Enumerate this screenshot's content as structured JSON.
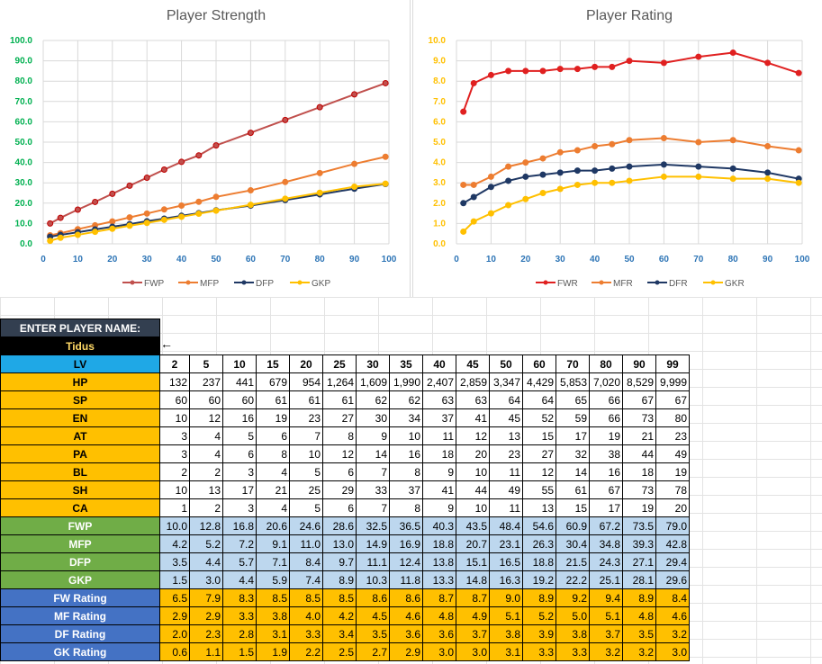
{
  "chart_data": [
    {
      "type": "line",
      "title": "Player Strength",
      "x": [
        2,
        5,
        10,
        15,
        20,
        25,
        30,
        35,
        40,
        45,
        50,
        60,
        70,
        80,
        90,
        99
      ],
      "xticks": [
        "0",
        "10",
        "20",
        "30",
        "40",
        "50",
        "60",
        "70",
        "80",
        "90",
        "100"
      ],
      "yticks": [
        "0.0",
        "10.0",
        "20.0",
        "30.0",
        "40.0",
        "50.0",
        "60.0",
        "70.0",
        "80.0",
        "90.0",
        "100.0"
      ],
      "xlim": [
        0,
        100
      ],
      "ylim": [
        0,
        100
      ],
      "grid": true,
      "legend_position": "bottom",
      "series": [
        {
          "name": "FWP",
          "color": "#c0504d",
          "values": [
            10.0,
            12.8,
            16.8,
            20.6,
            24.6,
            28.6,
            32.5,
            36.5,
            40.3,
            43.5,
            48.4,
            54.6,
            60.9,
            67.2,
            73.5,
            79.0
          ]
        },
        {
          "name": "MFP",
          "color": "#ed7d31",
          "values": [
            4.2,
            5.2,
            7.2,
            9.1,
            11.0,
            13.0,
            14.9,
            16.9,
            18.8,
            20.7,
            23.1,
            26.3,
            30.4,
            34.8,
            39.3,
            42.8
          ]
        },
        {
          "name": "DFP",
          "color": "#1f3864",
          "values": [
            3.5,
            4.4,
            5.7,
            7.1,
            8.4,
            9.7,
            11.1,
            12.4,
            13.8,
            15.1,
            16.5,
            18.8,
            21.5,
            24.3,
            27.1,
            29.4
          ]
        },
        {
          "name": "GKP",
          "color": "#ffc000",
          "values": [
            1.5,
            3.0,
            4.4,
            5.9,
            7.4,
            8.9,
            10.3,
            11.8,
            13.3,
            14.8,
            16.3,
            19.2,
            22.2,
            25.1,
            28.1,
            29.6
          ]
        }
      ]
    },
    {
      "type": "line",
      "title": "Player Rating",
      "x": [
        2,
        5,
        10,
        15,
        20,
        25,
        30,
        35,
        40,
        45,
        50,
        60,
        70,
        80,
        90,
        99
      ],
      "xticks": [
        "0",
        "10",
        "20",
        "30",
        "40",
        "50",
        "60",
        "70",
        "80",
        "90",
        "100"
      ],
      "yticks": [
        "0.0",
        "1.0",
        "2.0",
        "3.0",
        "4.0",
        "5.0",
        "6.0",
        "7.0",
        "8.0",
        "9.0",
        "10.0"
      ],
      "xlim": [
        0,
        100
      ],
      "ylim": [
        0,
        10
      ],
      "grid": true,
      "legend_position": "bottom",
      "series": [
        {
          "name": "FWR",
          "color": "#e02020",
          "values": [
            6.5,
            7.9,
            8.3,
            8.5,
            8.5,
            8.5,
            8.6,
            8.6,
            8.7,
            8.7,
            9.0,
            8.9,
            9.2,
            9.4,
            8.9,
            8.4
          ]
        },
        {
          "name": "MFR",
          "color": "#ed7d31",
          "values": [
            2.9,
            2.9,
            3.3,
            3.8,
            4.0,
            4.2,
            4.5,
            4.6,
            4.8,
            4.9,
            5.1,
            5.2,
            5.0,
            5.1,
            4.8,
            4.6
          ]
        },
        {
          "name": "DFR",
          "color": "#1f3864",
          "values": [
            2.0,
            2.3,
            2.8,
            3.1,
            3.3,
            3.4,
            3.5,
            3.6,
            3.6,
            3.7,
            3.8,
            3.9,
            3.8,
            3.7,
            3.5,
            3.2
          ]
        },
        {
          "name": "GKR",
          "color": "#ffc000",
          "values": [
            0.6,
            1.1,
            1.5,
            1.9,
            2.2,
            2.5,
            2.7,
            2.9,
            3.0,
            3.0,
            3.1,
            3.3,
            3.3,
            3.2,
            3.2,
            3.0
          ]
        }
      ]
    }
  ],
  "sheet": {
    "name_header": "ENTER PLAYER NAME:",
    "player_name": "Tidus",
    "arrow": "←",
    "lv_label": "LV",
    "levels": [
      "2",
      "5",
      "10",
      "15",
      "20",
      "25",
      "30",
      "35",
      "40",
      "45",
      "50",
      "60",
      "70",
      "80",
      "90",
      "99"
    ],
    "stat_rows": [
      {
        "label": "HP",
        "values": [
          "132",
          "237",
          "441",
          "679",
          "954",
          "1,264",
          "1,609",
          "1,990",
          "2,407",
          "2,859",
          "3,347",
          "4,429",
          "5,853",
          "7,020",
          "8,529",
          "9,999"
        ]
      },
      {
        "label": "SP",
        "values": [
          "60",
          "60",
          "60",
          "61",
          "61",
          "61",
          "62",
          "62",
          "63",
          "63",
          "64",
          "64",
          "65",
          "66",
          "67",
          "67"
        ]
      },
      {
        "label": "EN",
        "values": [
          "10",
          "12",
          "16",
          "19",
          "23",
          "27",
          "30",
          "34",
          "37",
          "41",
          "45",
          "52",
          "59",
          "66",
          "73",
          "80"
        ]
      },
      {
        "label": "AT",
        "values": [
          "3",
          "4",
          "5",
          "6",
          "7",
          "8",
          "9",
          "10",
          "11",
          "12",
          "13",
          "15",
          "17",
          "19",
          "21",
          "23"
        ]
      },
      {
        "label": "PA",
        "values": [
          "3",
          "4",
          "6",
          "8",
          "10",
          "12",
          "14",
          "16",
          "18",
          "20",
          "23",
          "27",
          "32",
          "38",
          "44",
          "49"
        ]
      },
      {
        "label": "BL",
        "values": [
          "2",
          "2",
          "3",
          "4",
          "5",
          "6",
          "7",
          "8",
          "9",
          "10",
          "11",
          "12",
          "14",
          "16",
          "18",
          "19"
        ]
      },
      {
        "label": "SH",
        "values": [
          "10",
          "13",
          "17",
          "21",
          "25",
          "29",
          "33",
          "37",
          "41",
          "44",
          "49",
          "55",
          "61",
          "67",
          "73",
          "78"
        ]
      },
      {
        "label": "CA",
        "values": [
          "1",
          "2",
          "3",
          "4",
          "5",
          "6",
          "7",
          "8",
          "9",
          "10",
          "11",
          "13",
          "15",
          "17",
          "19",
          "20"
        ]
      }
    ],
    "strength_rows": [
      {
        "label": "FWP",
        "values": [
          "10.0",
          "12.8",
          "16.8",
          "20.6",
          "24.6",
          "28.6",
          "32.5",
          "36.5",
          "40.3",
          "43.5",
          "48.4",
          "54.6",
          "60.9",
          "67.2",
          "73.5",
          "79.0"
        ]
      },
      {
        "label": "MFP",
        "values": [
          "4.2",
          "5.2",
          "7.2",
          "9.1",
          "11.0",
          "13.0",
          "14.9",
          "16.9",
          "18.8",
          "20.7",
          "23.1",
          "26.3",
          "30.4",
          "34.8",
          "39.3",
          "42.8"
        ]
      },
      {
        "label": "DFP",
        "values": [
          "3.5",
          "4.4",
          "5.7",
          "7.1",
          "8.4",
          "9.7",
          "11.1",
          "12.4",
          "13.8",
          "15.1",
          "16.5",
          "18.8",
          "21.5",
          "24.3",
          "27.1",
          "29.4"
        ]
      },
      {
        "label": "GKP",
        "values": [
          "1.5",
          "3.0",
          "4.4",
          "5.9",
          "7.4",
          "8.9",
          "10.3",
          "11.8",
          "13.3",
          "14.8",
          "16.3",
          "19.2",
          "22.2",
          "25.1",
          "28.1",
          "29.6"
        ]
      }
    ],
    "rating_rows": [
      {
        "label": "FW Rating",
        "values": [
          "6.5",
          "7.9",
          "8.3",
          "8.5",
          "8.5",
          "8.5",
          "8.6",
          "8.6",
          "8.7",
          "8.7",
          "9.0",
          "8.9",
          "9.2",
          "9.4",
          "8.9",
          "8.4"
        ]
      },
      {
        "label": "MF Rating",
        "values": [
          "2.9",
          "2.9",
          "3.3",
          "3.8",
          "4.0",
          "4.2",
          "4.5",
          "4.6",
          "4.8",
          "4.9",
          "5.1",
          "5.2",
          "5.0",
          "5.1",
          "4.8",
          "4.6"
        ]
      },
      {
        "label": "DF Rating",
        "values": [
          "2.0",
          "2.3",
          "2.8",
          "3.1",
          "3.3",
          "3.4",
          "3.5",
          "3.6",
          "3.6",
          "3.7",
          "3.8",
          "3.9",
          "3.8",
          "3.7",
          "3.5",
          "3.2"
        ]
      },
      {
        "label": "GK Rating",
        "values": [
          "0.6",
          "1.1",
          "1.5",
          "1.9",
          "2.2",
          "2.5",
          "2.7",
          "2.9",
          "3.0",
          "3.0",
          "3.1",
          "3.3",
          "3.3",
          "3.2",
          "3.2",
          "3.0"
        ]
      }
    ]
  }
}
